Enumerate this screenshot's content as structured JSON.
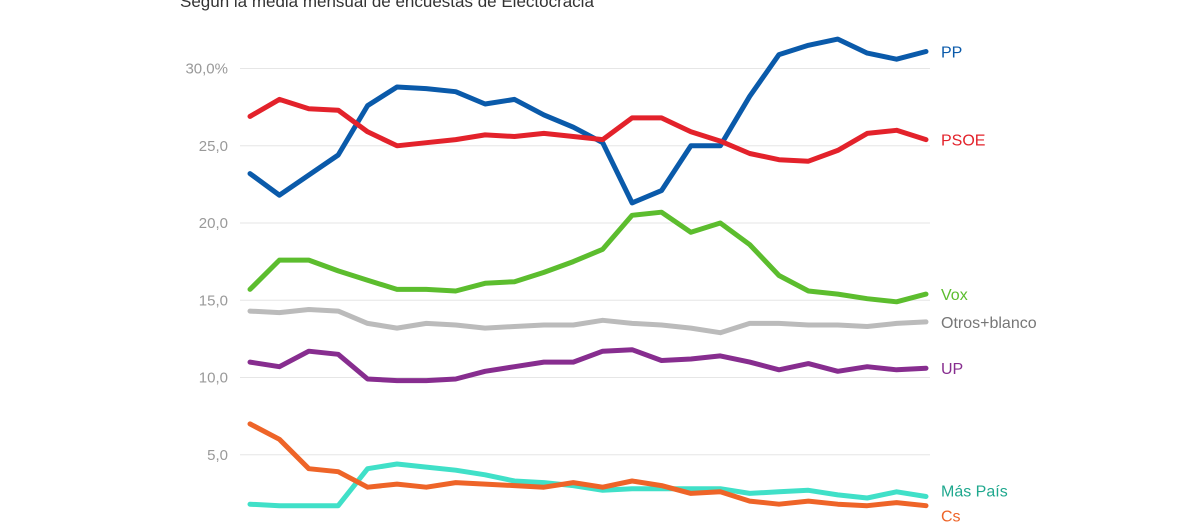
{
  "subtitle": "Según la media mensual de encuestas de Electocracia",
  "chart_data": {
    "type": "line",
    "title": "",
    "subtitle": "Según la media mensual de encuestas de Electocracia",
    "xlabel": "",
    "ylabel": "",
    "ylim": [
      0,
      32
    ],
    "y_ticks": [
      {
        "value": 5,
        "label": "5,0"
      },
      {
        "value": 10,
        "label": "10,0"
      },
      {
        "value": 15,
        "label": "15,0"
      },
      {
        "value": 20,
        "label": "20,0"
      },
      {
        "value": 25,
        "label": "25,0"
      },
      {
        "value": 30,
        "label": "30,0%"
      }
    ],
    "grid": true,
    "legend": "end-of-line labels",
    "series": [
      {
        "name": "PP",
        "color": "#0A5AAA",
        "values": [
          23.2,
          21.8,
          23.1,
          24.4,
          27.6,
          28.8,
          28.7,
          28.5,
          27.7,
          28.0,
          27.0,
          26.2,
          25.2,
          21.3,
          22.1,
          25.0,
          25.0,
          28.2,
          30.9,
          31.5,
          31.9,
          31.0,
          30.6,
          31.1
        ]
      },
      {
        "name": "PSOE",
        "color": "#E3222B",
        "values": [
          26.9,
          28.0,
          27.4,
          27.3,
          25.9,
          25.0,
          25.2,
          25.4,
          25.7,
          25.6,
          25.8,
          25.6,
          25.4,
          26.8,
          26.8,
          25.9,
          25.3,
          24.5,
          24.1,
          24.0,
          24.7,
          25.8,
          26.0,
          25.4
        ]
      },
      {
        "name": "Vox",
        "color": "#5CBD2E",
        "values": [
          15.7,
          17.6,
          17.6,
          16.9,
          16.3,
          15.7,
          15.7,
          15.6,
          16.1,
          16.2,
          16.8,
          17.5,
          18.3,
          20.5,
          20.7,
          19.4,
          20.0,
          18.6,
          16.6,
          15.6,
          15.4,
          15.1,
          14.9,
          15.4
        ]
      },
      {
        "name": "Otros+blanco",
        "color": "#BBBBBB",
        "values": [
          14.3,
          14.2,
          14.4,
          14.3,
          13.5,
          13.2,
          13.5,
          13.4,
          13.2,
          13.3,
          13.4,
          13.4,
          13.7,
          13.5,
          13.4,
          13.2,
          12.9,
          13.5,
          13.5,
          13.4,
          13.4,
          13.3,
          13.5,
          13.6
        ]
      },
      {
        "name": "UP",
        "color": "#872D8F",
        "values": [
          11.0,
          10.7,
          11.7,
          11.5,
          9.9,
          9.8,
          9.8,
          9.9,
          10.4,
          10.7,
          11.0,
          11.0,
          11.7,
          11.8,
          11.1,
          11.2,
          11.4,
          11.0,
          10.5,
          10.9,
          10.4,
          10.7,
          10.5,
          10.6
        ]
      },
      {
        "name": "Más País",
        "color": "#40E0C8",
        "values": [
          1.8,
          1.7,
          1.7,
          1.7,
          4.1,
          4.4,
          4.2,
          4.0,
          3.7,
          3.3,
          3.2,
          3.0,
          2.7,
          2.8,
          2.8,
          2.8,
          2.8,
          2.5,
          2.6,
          2.7,
          2.4,
          2.2,
          2.6,
          2.3
        ]
      },
      {
        "name": "Cs",
        "color": "#EE6428",
        "values": [
          7.0,
          6.0,
          4.1,
          3.9,
          2.9,
          3.1,
          2.9,
          3.2,
          3.1,
          3.0,
          2.9,
          3.2,
          2.9,
          3.3,
          3.0,
          2.5,
          2.6,
          2.0,
          1.8,
          2.0,
          1.8,
          1.7,
          1.9,
          1.7
        ]
      }
    ]
  }
}
